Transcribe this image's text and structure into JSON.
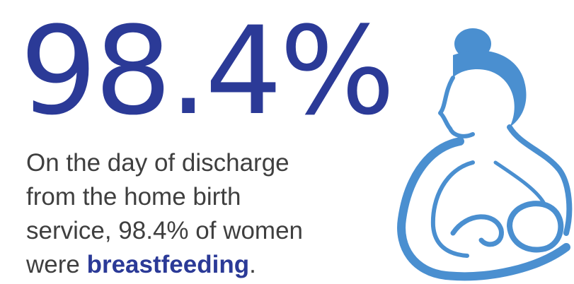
{
  "headline": "98.4%",
  "body": {
    "lines": [
      "On the day of discharge",
      "from the home birth",
      "service, 98.4% of women"
    ],
    "last_line": {
      "start": "were ",
      "emphasis": "breastfeeding",
      "end": "."
    }
  }
}
